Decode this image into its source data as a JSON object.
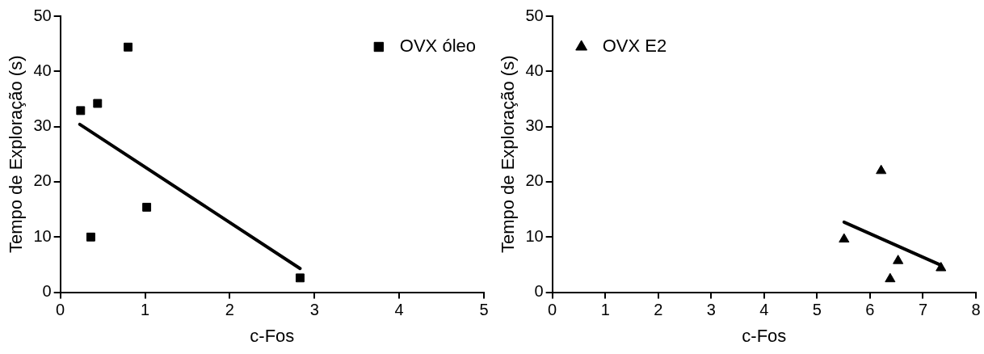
{
  "chart_data": [
    {
      "type": "scatter",
      "xlabel": "c-Fos",
      "ylabel": "Tempo de Exploração (s)",
      "xlim": [
        0,
        5
      ],
      "xticks": [
        0,
        1,
        2,
        3,
        4,
        5
      ],
      "ylim": [
        0,
        50
      ],
      "yticks": [
        0,
        10,
        20,
        30,
        40,
        50
      ],
      "grid": false,
      "legend": "top right",
      "series": [
        {
          "name": "OVX óleo",
          "type": "scatter",
          "marker": "square",
          "color": "#000000",
          "x": [
            0.8,
            0.24,
            0.44,
            0.36,
            1.02,
            2.83
          ],
          "values": [
            44.4,
            32.9,
            34.2,
            10.0,
            15.4,
            2.6
          ]
        },
        {
          "type": "line",
          "marker": "none",
          "color": "#000000",
          "x": [
            0.23,
            2.83
          ],
          "values": [
            30.4,
            4.3
          ]
        }
      ]
    },
    {
      "type": "scatter",
      "xlabel": "c-Fos",
      "ylabel": "Tempo de Exploração (s)",
      "xlim": [
        0,
        8
      ],
      "xticks": [
        0,
        1,
        2,
        3,
        4,
        5,
        6,
        7,
        8
      ],
      "ylim": [
        0,
        50
      ],
      "yticks": [
        0,
        10,
        20,
        30,
        40,
        50
      ],
      "grid": false,
      "legend": "top left",
      "series": [
        {
          "name": "OVX E2",
          "type": "scatter",
          "marker": "triangle",
          "color": "#000000",
          "x": [
            5.51,
            6.21,
            6.53,
            6.38,
            7.34
          ],
          "values": [
            9.6,
            22.0,
            5.7,
            2.4,
            4.4
          ]
        },
        {
          "type": "line",
          "marker": "none",
          "color": "#000000",
          "x": [
            5.51,
            7.34
          ],
          "values": [
            12.7,
            4.9
          ]
        }
      ]
    }
  ]
}
